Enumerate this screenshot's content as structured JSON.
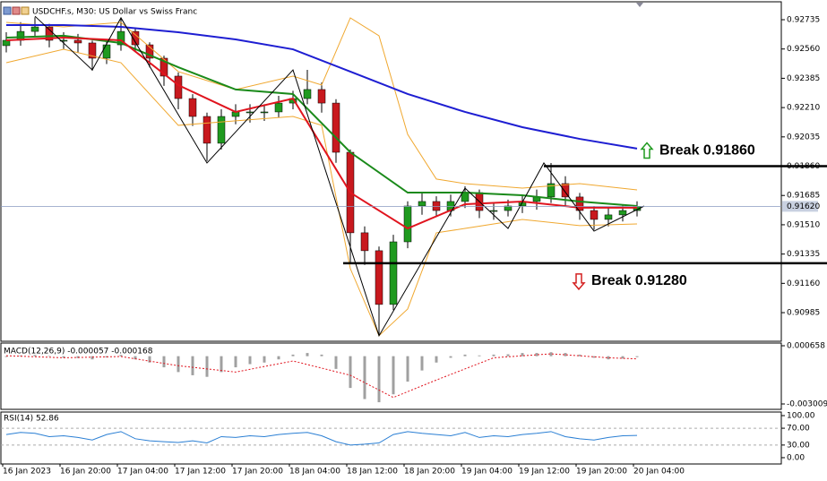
{
  "chart_data": [
    {
      "type": "candlestick",
      "title": "USDCHF.s, M30:  US Dollar vs Swiss Franc",
      "categories": [
        "16 Jan 2023",
        null,
        null,
        null,
        "16 Jan 20:00",
        null,
        null,
        null,
        "17 Jan 04:00",
        null,
        null,
        null,
        "17 Jan 12:00",
        null,
        null,
        null,
        "17 Jan 20:00",
        null,
        null,
        null,
        "18 Jan 04:00",
        null,
        null,
        null,
        "18 Jan 12:00",
        null,
        null,
        null,
        "18 Jan 20:00",
        null,
        null,
        null,
        "19 Jan 04:00",
        null,
        null,
        null,
        "19 Jan 12:00",
        null,
        null,
        null,
        "19 Jan 20:00",
        null,
        null,
        null,
        "20 Jan 04:00"
      ],
      "open": [
        0.9258,
        0.92612,
        0.92665,
        0.92692,
        0.92612,
        0.92612,
        0.92596,
        0.92505,
        0.92585,
        0.92665,
        0.92585,
        0.92505,
        0.92398,
        0.92264,
        0.92157,
        0.91997,
        0.92157,
        0.92184,
        0.92184,
        0.92184,
        0.92237,
        0.92264,
        0.92318,
        0.92237,
        0.91943,
        0.91462,
        0.91355,
        0.91034,
        0.91408,
        0.91622,
        0.91649,
        0.91595,
        0.91649,
        0.91702,
        0.91595,
        0.91595,
        0.91622,
        0.91649,
        0.91676,
        0.91756,
        0.91676,
        0.91595,
        0.91542,
        0.91569,
        0.91595
      ],
      "high": [
        0.9266,
        0.9272,
        0.9275,
        0.9271,
        0.9266,
        0.9265,
        0.9261,
        0.9262,
        0.92746,
        0.9268,
        0.926,
        0.9252,
        0.9242,
        0.9229,
        0.9218,
        0.922,
        0.9223,
        0.9223,
        0.9223,
        0.9228,
        0.9231,
        0.92435,
        0.9236,
        0.9226,
        0.9196,
        0.915,
        0.9138,
        0.9145,
        0.9165,
        0.917,
        0.9168,
        0.9169,
        0.9174,
        0.9172,
        0.9164,
        0.9166,
        0.9169,
        0.9172,
        0.91879,
        0.918,
        0.917,
        0.9162,
        0.9161,
        0.9163,
        0.9165
      ],
      "low": [
        0.9254,
        0.9258,
        0.9263,
        0.9257,
        0.9256,
        0.9254,
        0.9243,
        0.9247,
        0.9255,
        0.9254,
        0.9245,
        0.9234,
        0.922,
        0.921,
        0.9189,
        0.9196,
        0.9211,
        0.9212,
        0.9213,
        0.9215,
        0.922,
        0.9223,
        0.9218,
        0.9188,
        0.9128,
        0.9127,
        0.90847,
        0.91,
        0.9137,
        0.9157,
        0.9156,
        0.9156,
        0.9161,
        0.9155,
        0.9154,
        0.9156,
        0.9158,
        0.916,
        0.9164,
        0.9162,
        0.9154,
        0.9148,
        0.915,
        0.9153,
        0.9156
      ],
      "close": [
        0.92612,
        0.92665,
        0.92692,
        0.92612,
        0.92612,
        0.92596,
        0.92505,
        0.92585,
        0.92665,
        0.92585,
        0.92505,
        0.92398,
        0.92264,
        0.92157,
        0.91997,
        0.92157,
        0.92184,
        0.92184,
        0.92184,
        0.92237,
        0.92264,
        0.92318,
        0.92237,
        0.91943,
        0.91462,
        0.91355,
        0.91034,
        0.91408,
        0.91622,
        0.91649,
        0.91595,
        0.91649,
        0.91702,
        0.91595,
        0.91595,
        0.91622,
        0.91649,
        0.91676,
        0.91756,
        0.91676,
        0.91595,
        0.91542,
        0.91569,
        0.91595,
        0.9162
      ],
      "up_color": "#1f9a1f",
      "down_color": "#c8191e",
      "overlays": [
        {
          "kind": "band",
          "color": "#f0a830",
          "x": [
            0,
            4,
            8,
            12,
            16,
            20,
            22,
            24,
            26,
            28,
            30,
            32,
            36,
            40,
            44
          ],
          "values": [
            0.92719,
            0.92692,
            0.92719,
            0.92425,
            0.92318,
            0.92398,
            0.92345,
            0.92746,
            0.92639,
            0.9205,
            0.91783,
            0.91756,
            0.91729,
            0.91756,
            0.91718
          ]
        },
        {
          "kind": "band",
          "color": "#f0a830",
          "x": [
            0,
            4,
            8,
            12,
            16,
            20,
            22,
            24,
            26,
            28,
            30,
            32,
            36,
            40,
            44
          ],
          "values": [
            0.92478,
            0.92558,
            0.92478,
            0.92104,
            0.92131,
            0.92157,
            0.92104,
            0.91248,
            0.90847,
            0.91007,
            0.91462,
            0.91488,
            0.91542,
            0.91505,
            0.91515
          ]
        },
        {
          "kind": "ma",
          "color": "#1e1ed2",
          "x": [
            0,
            4,
            8,
            12,
            16,
            20,
            24,
            28,
            32,
            36,
            40,
            44
          ],
          "values": [
            0.92703,
            0.92703,
            0.92692,
            0.9266,
            0.92617,
            0.92558,
            0.92425,
            0.92291,
            0.92184,
            0.92093,
            0.92023,
            0.91965
          ]
        },
        {
          "kind": "ma",
          "color": "#1a8a1a",
          "x": [
            0,
            4,
            8,
            12,
            16,
            20,
            24,
            28,
            32,
            36,
            40,
            44
          ],
          "values": [
            0.92628,
            0.92639,
            0.92596,
            0.92451,
            0.92318,
            0.92291,
            0.91943,
            0.91702,
            0.91702,
            0.91686,
            0.91649,
            0.91622
          ]
        },
        {
          "kind": "ma",
          "color": "#e0141e",
          "x": [
            0,
            4,
            8,
            12,
            16,
            20,
            24,
            28,
            32,
            36,
            40,
            44
          ],
          "values": [
            0.92612,
            0.92628,
            0.92612,
            0.92344,
            0.92184,
            0.92264,
            0.91702,
            0.91488,
            0.91633,
            0.91649,
            0.91612,
            0.91612
          ]
        },
        {
          "kind": "zigzag",
          "color": "#000000",
          "x": [
            2,
            6,
            8,
            14,
            20,
            26,
            32,
            35,
            37.5,
            41,
            44.5
          ],
          "values": [
            0.92756,
            0.92435,
            0.92746,
            0.91879,
            0.92435,
            0.90847,
            0.91729,
            0.91488,
            0.91879,
            0.91472,
            0.91622
          ]
        }
      ],
      "annotations": [
        {
          "text": "Break 0.91860",
          "value": 0.9186,
          "from": 37.5,
          "direction": "up",
          "color": "#1f9a1f"
        },
        {
          "text": "Break 0.91280",
          "value": 0.9128,
          "from": 23.5,
          "direction": "down",
          "color": "#d42020"
        }
      ],
      "last": {
        "value": 0.9162,
        "label": "0.91620"
      },
      "ylim": [
        0.90814,
        0.92842
      ],
      "yticks": [
        0.92735,
        {
          "value": 0.9256,
          "label": "0.92560"
        },
        0.92385,
        {
          "value": 0.9221,
          "label": "0.92210"
        },
        0.92035,
        {
          "value": 0.9186,
          "label": "0.91860"
        },
        0.91685,
        {
          "value": 0.9151,
          "label": "0.91510"
        },
        0.91335,
        {
          "value": 0.9116,
          "label": "0.91160"
        },
        0.90985
      ]
    },
    {
      "type": "macd",
      "label": "MACD(12,26,9) -0.000057 -0.000168",
      "color": "#a0a0a0",
      "values": [
        -5e-05,
        5e-05,
        8e-05,
        2e-05,
        -0.0001,
        -0.00012,
        -0.0002,
        -8e-05,
        8e-05,
        -0.0002,
        -0.0004,
        -0.0007,
        -0.001,
        -0.0012,
        -0.0013,
        -0.001,
        -0.0007,
        -0.0005,
        -0.0004,
        -0.0002,
        0.0001,
        0.0002,
        0.0001,
        -0.0008,
        -0.002,
        -0.0027,
        -0.0029,
        -0.0024,
        -0.0016,
        -0.0009,
        -0.0004,
        -0.0001,
        0.0001,
        5e-05,
        0.0001,
        0.00012,
        0.0002,
        0.0002,
        0.00025,
        0.0002,
        0.0001,
        -0.0001,
        -0.0002,
        -0.00015,
        -6e-05
      ],
      "overlays": [
        {
          "kind": "signal",
          "color": "#e0141e",
          "x": [
            0,
            4,
            8,
            12,
            16,
            20,
            24,
            27,
            30,
            34,
            38,
            42,
            44
          ],
          "values": [
            3e-05,
            -0.0001,
            -2e-05,
            -0.0006,
            -0.001,
            -0.0003,
            -0.0012,
            -0.0026,
            -0.0015,
            -0.0001,
            0.00015,
            -0.0001,
            -0.000168
          ]
        }
      ],
      "ylim": [
        -0.003347,
        0.000827
      ],
      "yticks": [
        0.000658,
        -0.003009
      ]
    },
    {
      "type": "line",
      "label": "RSI(14) 52.86",
      "color": "#2a7fd4",
      "values": [
        55,
        60,
        58,
        50,
        52,
        48,
        42,
        55,
        62,
        45,
        40,
        38,
        36,
        40,
        35,
        50,
        48,
        52,
        50,
        55,
        58,
        60,
        52,
        38,
        30,
        32,
        35,
        55,
        62,
        58,
        55,
        52,
        60,
        48,
        52,
        50,
        55,
        58,
        62,
        50,
        45,
        42,
        48,
        52,
        52.86
      ],
      "levels": [
        70,
        30
      ],
      "ylim": [
        -15,
        108.5
      ],
      "yticks": [
        {
          "value": 100,
          "label": "100.00"
        },
        {
          "value": 70,
          "label": "70.00"
        },
        {
          "value": 30,
          "label": "30.00"
        },
        {
          "value": 0,
          "label": "0.00"
        }
      ]
    }
  ]
}
